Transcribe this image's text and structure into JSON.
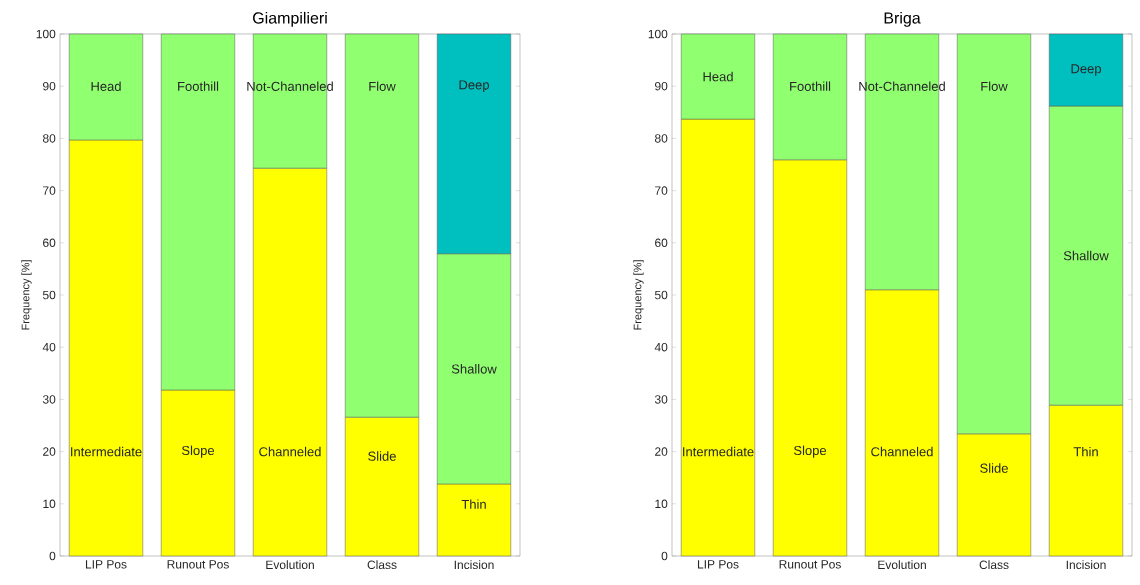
{
  "chart_data": [
    {
      "type": "bar",
      "stacked": true,
      "title": "Giampilieri",
      "ylabel": "Frequency [%]",
      "categories": [
        "LIP Pos",
        "Runout Pos",
        "Evolution",
        "Class",
        "Incision"
      ],
      "series": [
        {
          "color": "#ffff00",
          "values": [
            79.7,
            31.8,
            74.3,
            26.6,
            13.8
          ],
          "value_labels": [
            "Intermediate",
            "Slope",
            "Channeled",
            "Slide",
            "Thin"
          ]
        },
        {
          "color": "#90ff70",
          "values": [
            20.3,
            68.2,
            25.7,
            73.4,
            44.1
          ],
          "value_labels": [
            "Head",
            "Foothill",
            "Not-Channeled",
            "Flow",
            "Shallow"
          ]
        },
        {
          "color": "#00bfbf",
          "values": [
            null,
            null,
            null,
            null,
            42.1
          ],
          "value_labels": [
            null,
            null,
            null,
            null,
            "Deep"
          ]
        }
      ],
      "ylim": [
        0,
        100
      ],
      "yticks": [
        0,
        10,
        20,
        30,
        40,
        50,
        60,
        70,
        80,
        90,
        100
      ]
    },
    {
      "type": "bar",
      "stacked": true,
      "title": "Briga",
      "ylabel": "Frequency [%]",
      "categories": [
        "LIP Pos",
        "Runout Pos",
        "Evolution",
        "Class",
        "Incision"
      ],
      "series": [
        {
          "color": "#ffff00",
          "values": [
            83.7,
            75.9,
            51.0,
            23.4,
            28.9
          ],
          "value_labels": [
            "Intermediate",
            "Slope",
            "Channeled",
            "Slide",
            "Thin"
          ]
        },
        {
          "color": "#90ff70",
          "values": [
            16.3,
            24.1,
            49.0,
            76.6,
            57.3
          ],
          "value_labels": [
            "Head",
            "Foothill",
            "Not-Channeled",
            "Flow",
            "Shallow"
          ]
        },
        {
          "color": "#00bfbf",
          "values": [
            null,
            null,
            null,
            null,
            13.8
          ],
          "value_labels": [
            null,
            null,
            null,
            null,
            "Deep"
          ]
        }
      ],
      "ylim": [
        0,
        100
      ],
      "yticks": [
        0,
        10,
        20,
        30,
        40,
        50,
        60,
        70,
        80,
        90,
        100
      ]
    }
  ]
}
